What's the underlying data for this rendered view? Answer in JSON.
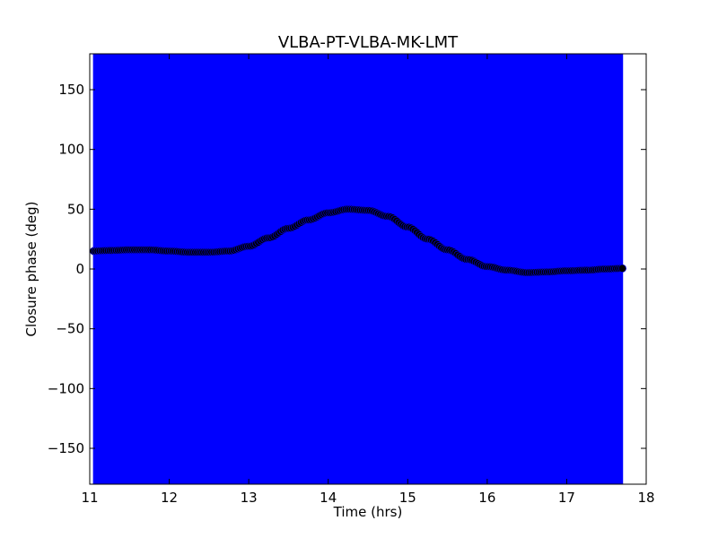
{
  "chart_data": {
    "type": "scatter",
    "title": "VLBA-PT-VLBA-MK-LMT",
    "xlabel": "Time (hrs)",
    "ylabel": "Closure phase (deg)",
    "xlim": [
      11,
      18
    ],
    "ylim": [
      -180,
      180
    ],
    "x_ticks": [
      11,
      12,
      13,
      14,
      15,
      16,
      17,
      18
    ],
    "y_ticks": [
      -150,
      -100,
      -50,
      0,
      50,
      100,
      150
    ],
    "y_tick_labels": [
      "−150",
      "−100",
      "−50",
      "0",
      "50",
      "100",
      "150"
    ],
    "grid": false,
    "legend": "none",
    "colors": {
      "error_band": "#0000ff",
      "markers": "#000000",
      "marker_edge": "#0000ff"
    },
    "series": [
      {
        "error_band": [
          -180,
          180
        ],
        "x": [
          11.05,
          11.25,
          11.5,
          11.75,
          12.0,
          12.25,
          12.5,
          12.75,
          13.0,
          13.25,
          13.5,
          13.75,
          14.0,
          14.25,
          14.5,
          14.75,
          15.0,
          15.25,
          15.5,
          15.75,
          16.0,
          16.25,
          16.5,
          16.75,
          17.0,
          17.25,
          17.5,
          17.7
        ],
        "y": [
          15,
          15.5,
          16,
          16,
          15,
          14,
          14,
          15,
          19,
          26,
          34,
          41,
          47,
          50,
          49,
          44,
          35,
          25,
          16,
          8,
          2,
          -1,
          -3,
          -2.5,
          -1.5,
          -1,
          0,
          0.5
        ]
      }
    ]
  }
}
